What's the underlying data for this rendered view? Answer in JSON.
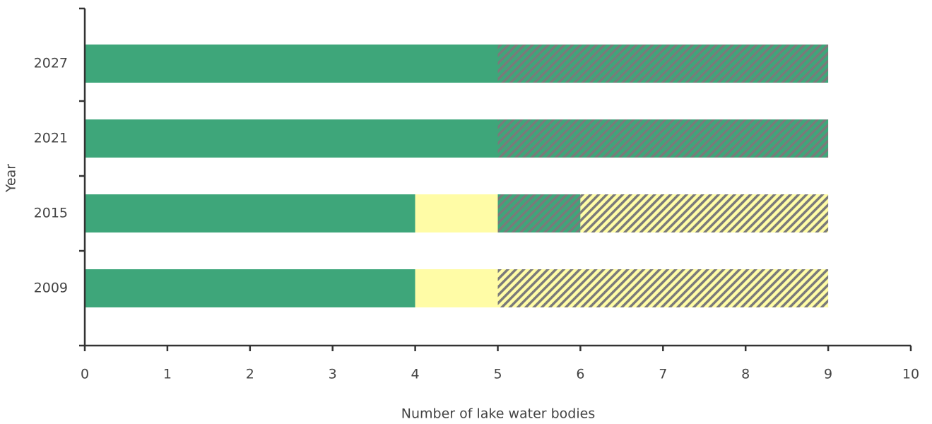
{
  "chart_data": {
    "type": "stacked-bar-horizontal",
    "x_label": "Number of lake water bodies",
    "y_label": "Year",
    "categories": [
      "2009",
      "2015",
      "2021",
      "2027"
    ],
    "series": [
      {
        "color": "#3ea67a",
        "hatch": false,
        "values": [
          4,
          4,
          5,
          5
        ]
      },
      {
        "color": "#fffca6",
        "hatch": false,
        "values": [
          1,
          1,
          0,
          0
        ]
      },
      {
        "color": "#3ea67a",
        "hatch": true,
        "hatch_color": "#7a7a7a",
        "values": [
          0,
          1,
          4,
          4
        ]
      },
      {
        "color": "#fffca6",
        "hatch": true,
        "hatch_color": "#7a7a7a",
        "values": [
          4,
          3,
          0,
          0
        ]
      }
    ],
    "xlim": [
      0,
      10
    ],
    "xticks": [
      0,
      1,
      2,
      3,
      4,
      5,
      6,
      7,
      8,
      9,
      10
    ]
  }
}
